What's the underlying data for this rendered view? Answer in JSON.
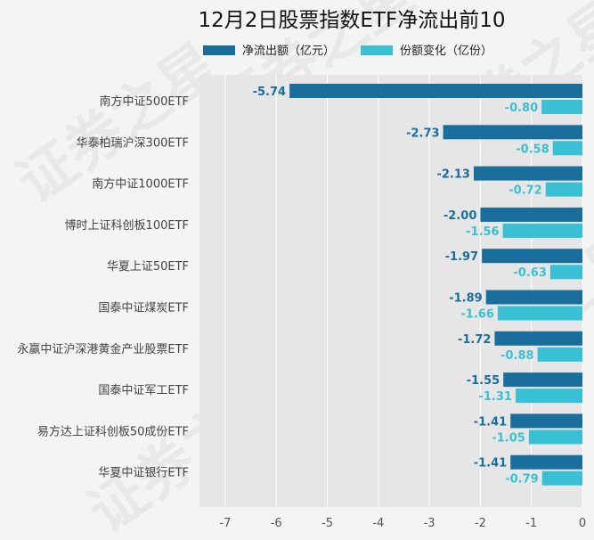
{
  "chart_data": {
    "type": "bar",
    "orientation": "horizontal",
    "title": "12月2日股票指数ETF净流出前10",
    "categories": [
      "南方中证500ETF",
      "华泰柏瑞沪深300ETF",
      "南方中证1000ETF",
      "博时上证科创板100ETF",
      "华夏上证50ETF",
      "国泰中证煤炭ETF",
      "永赢中证沪深港黄金产业股票ETF",
      "国泰中证军工ETF",
      "易方达上证科创板50成份ETF",
      "华夏中证银行ETF"
    ],
    "series": [
      {
        "name": "净流出额（亿元）",
        "color": "#1a6e9c",
        "values": [
          -5.74,
          -2.73,
          -2.13,
          -2.0,
          -1.97,
          -1.89,
          -1.72,
          -1.55,
          -1.41,
          -1.41
        ],
        "labels": [
          "-5.74",
          "-2.73",
          "-2.13",
          "-2.00",
          "-1.97",
          "-1.89",
          "-1.72",
          "-1.55",
          "-1.41",
          "-1.41"
        ]
      },
      {
        "name": "份额变化（亿份）",
        "color": "#3ac0d4",
        "values": [
          -0.8,
          -0.58,
          -0.72,
          -1.56,
          -0.63,
          -1.66,
          -0.88,
          -1.31,
          -1.05,
          -0.79
        ],
        "labels": [
          "-0.80",
          "-0.58",
          "-0.72",
          "-1.56",
          "-0.63",
          "-1.66",
          "-0.88",
          "-1.31",
          "-1.05",
          "-0.79"
        ]
      }
    ],
    "xlim": [
      -7.5,
      0
    ],
    "xticks": [
      -7,
      -6,
      -5,
      -4,
      -3,
      -2,
      -1,
      0
    ],
    "xtick_labels": [
      "-7",
      "-6",
      "-5",
      "-4",
      "-3",
      "-2",
      "-1",
      "0"
    ],
    "grid": true,
    "legend_position": "top",
    "watermark": "证券之星"
  }
}
